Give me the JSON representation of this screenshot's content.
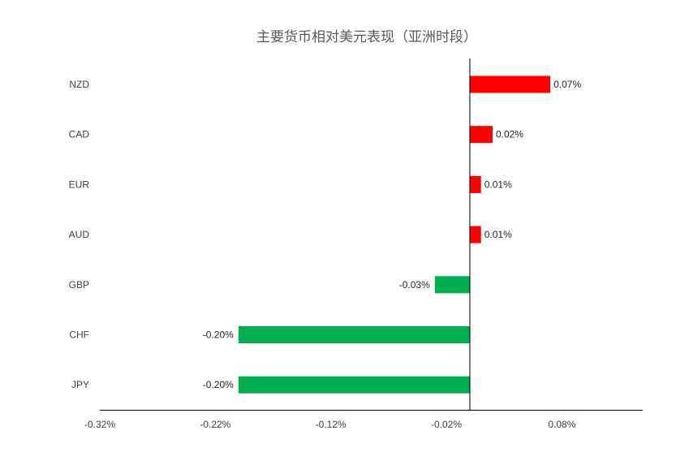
{
  "chart_data": {
    "type": "bar",
    "orientation": "horizontal",
    "title": "主要货币相对美元表现（亚洲时段）",
    "xlabel": "",
    "ylabel": "",
    "categories": [
      "NZD",
      "CAD",
      "EUR",
      "AUD",
      "GBP",
      "CHF",
      "JPY"
    ],
    "values": [
      0.07,
      0.02,
      0.01,
      0.01,
      -0.03,
      -0.2,
      -0.2
    ],
    "value_labels": [
      "0.07%",
      "0.02%",
      "0.01%",
      "0.01%",
      "-0.03%",
      "-0.20%",
      "-0.20%"
    ],
    "xlim": [
      -0.32,
      0.15
    ],
    "xticks": [
      -0.32,
      -0.22,
      -0.12,
      -0.02,
      0.08
    ],
    "xtick_labels": [
      "-0.32%",
      "-0.22%",
      "-0.12%",
      "-0.02%",
      "0.08%"
    ],
    "positive_color": "#ff0000",
    "negative_color": "#00b050",
    "grid": false,
    "legend": "none"
  }
}
